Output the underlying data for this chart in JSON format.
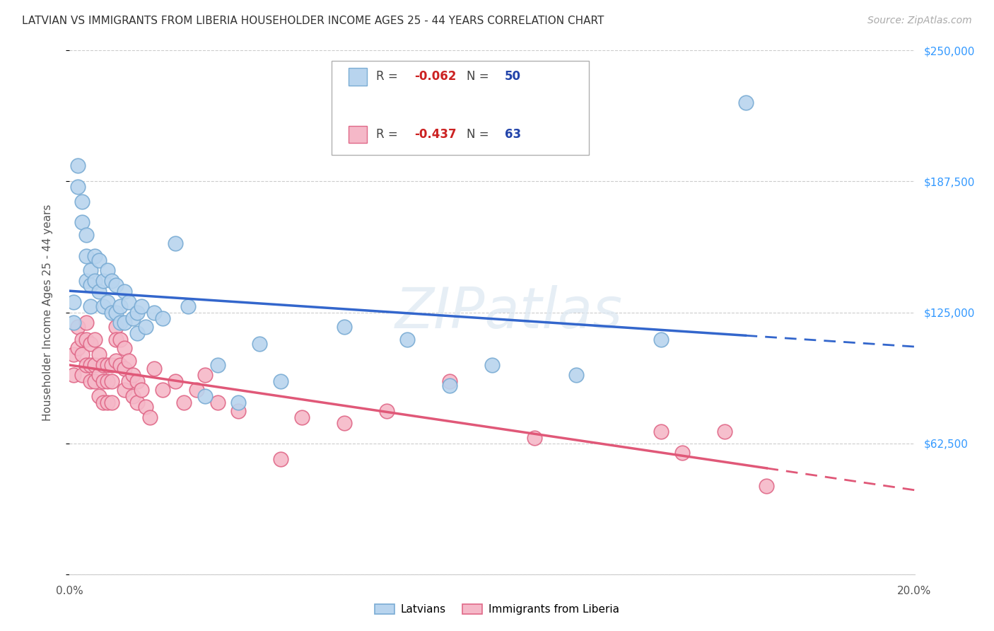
{
  "title": "LATVIAN VS IMMIGRANTS FROM LIBERIA HOUSEHOLDER INCOME AGES 25 - 44 YEARS CORRELATION CHART",
  "source": "Source: ZipAtlas.com",
  "ylabel": "Householder Income Ages 25 - 44 years",
  "xlim": [
    0.0,
    0.2
  ],
  "ylim": [
    0,
    250000
  ],
  "ytick_labels": [
    "",
    "$62,500",
    "$125,000",
    "$187,500",
    "$250,000"
  ],
  "ytick_values": [
    0,
    62500,
    125000,
    187500,
    250000
  ],
  "xtick_values": [
    0.0,
    0.02,
    0.04,
    0.06,
    0.08,
    0.1,
    0.12,
    0.14,
    0.16,
    0.18,
    0.2
  ],
  "grid_color": "#cccccc",
  "background_color": "#ffffff",
  "latvian_color": "#b8d4ee",
  "liberia_color": "#f5b8c8",
  "latvian_edge_color": "#7aacd4",
  "liberia_edge_color": "#e06888",
  "latvian_line_color": "#3366cc",
  "liberia_line_color": "#e05878",
  "latvian_R": -0.062,
  "latvian_N": 50,
  "liberia_R": -0.437,
  "liberia_N": 63,
  "latvian_x": [
    0.001,
    0.001,
    0.002,
    0.002,
    0.003,
    0.003,
    0.004,
    0.004,
    0.004,
    0.005,
    0.005,
    0.005,
    0.006,
    0.006,
    0.007,
    0.007,
    0.008,
    0.008,
    0.009,
    0.009,
    0.01,
    0.01,
    0.011,
    0.011,
    0.012,
    0.012,
    0.013,
    0.013,
    0.014,
    0.015,
    0.016,
    0.016,
    0.017,
    0.018,
    0.02,
    0.022,
    0.025,
    0.028,
    0.032,
    0.035,
    0.04,
    0.045,
    0.05,
    0.065,
    0.08,
    0.09,
    0.1,
    0.12,
    0.14,
    0.16
  ],
  "latvian_y": [
    130000,
    120000,
    195000,
    185000,
    178000,
    168000,
    162000,
    152000,
    140000,
    145000,
    138000,
    128000,
    152000,
    140000,
    150000,
    135000,
    140000,
    128000,
    145000,
    130000,
    140000,
    125000,
    138000,
    125000,
    128000,
    120000,
    135000,
    120000,
    130000,
    122000,
    125000,
    115000,
    128000,
    118000,
    125000,
    122000,
    158000,
    128000,
    85000,
    100000,
    82000,
    110000,
    92000,
    118000,
    112000,
    90000,
    100000,
    95000,
    112000,
    225000
  ],
  "liberia_x": [
    0.001,
    0.001,
    0.002,
    0.002,
    0.003,
    0.003,
    0.003,
    0.004,
    0.004,
    0.004,
    0.005,
    0.005,
    0.005,
    0.006,
    0.006,
    0.006,
    0.007,
    0.007,
    0.007,
    0.008,
    0.008,
    0.008,
    0.009,
    0.009,
    0.009,
    0.01,
    0.01,
    0.01,
    0.011,
    0.011,
    0.011,
    0.012,
    0.012,
    0.013,
    0.013,
    0.013,
    0.014,
    0.014,
    0.015,
    0.015,
    0.016,
    0.016,
    0.017,
    0.018,
    0.019,
    0.02,
    0.022,
    0.025,
    0.027,
    0.03,
    0.032,
    0.035,
    0.04,
    0.05,
    0.055,
    0.065,
    0.075,
    0.09,
    0.11,
    0.14,
    0.145,
    0.155,
    0.165
  ],
  "liberia_y": [
    105000,
    95000,
    118000,
    108000,
    112000,
    105000,
    95000,
    120000,
    112000,
    100000,
    110000,
    100000,
    92000,
    112000,
    100000,
    92000,
    105000,
    95000,
    85000,
    100000,
    92000,
    82000,
    100000,
    92000,
    82000,
    100000,
    92000,
    82000,
    118000,
    112000,
    102000,
    112000,
    100000,
    108000,
    98000,
    88000,
    102000,
    92000,
    95000,
    85000,
    92000,
    82000,
    88000,
    80000,
    75000,
    98000,
    88000,
    92000,
    82000,
    88000,
    95000,
    82000,
    78000,
    55000,
    75000,
    72000,
    78000,
    92000,
    65000,
    68000,
    58000,
    68000,
    42000
  ]
}
